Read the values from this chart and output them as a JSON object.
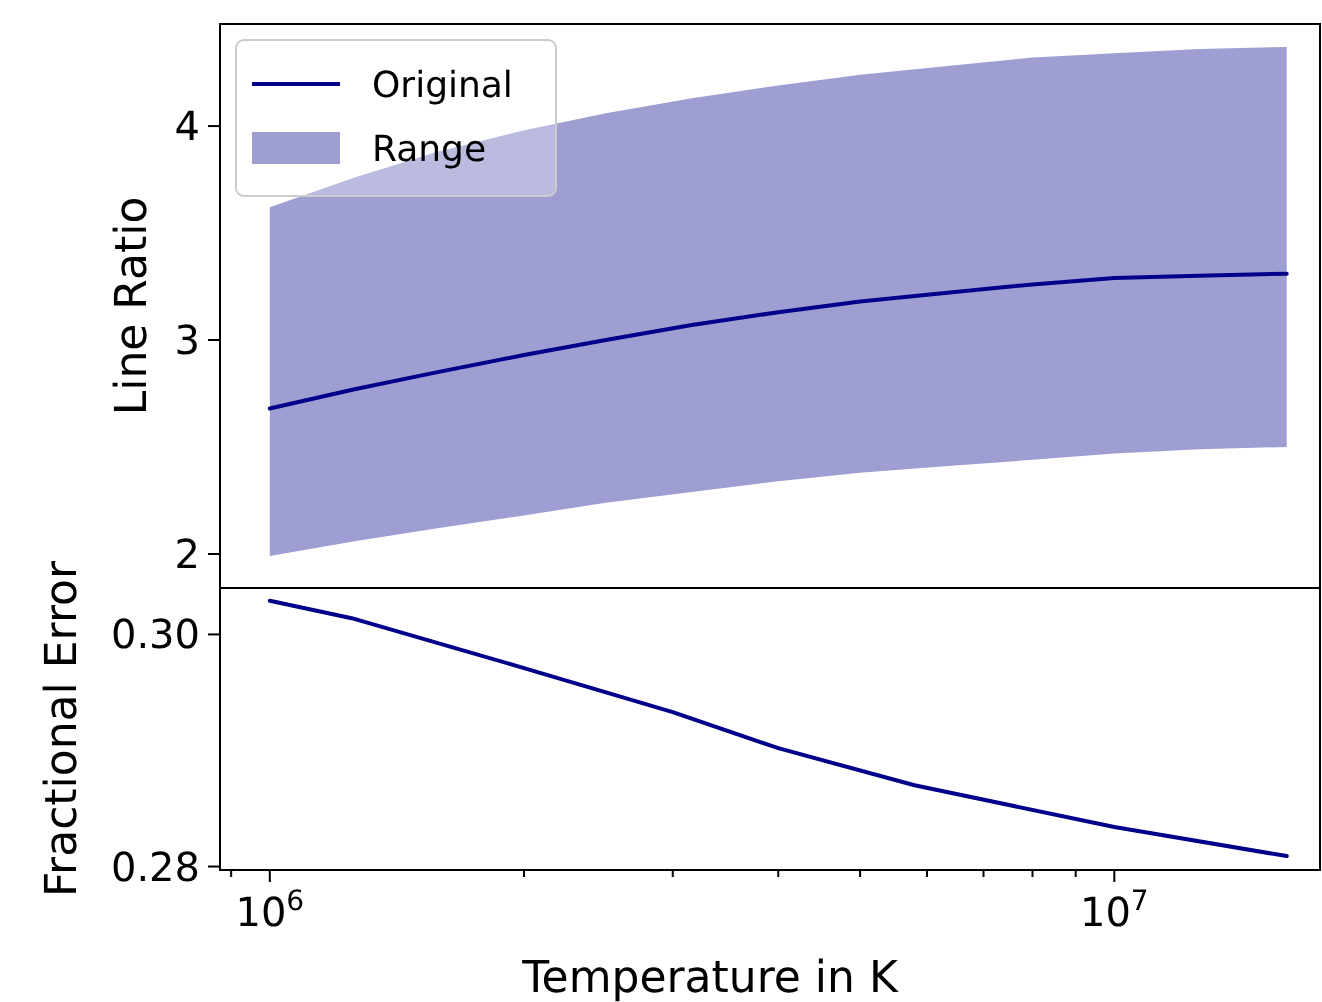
{
  "chart_data": [
    {
      "type": "line",
      "ylabel": "Line Ratio",
      "log": "x",
      "xlim": [
        873000,
        17520000
      ],
      "ylim": [
        1.841,
        4.477
      ],
      "yticks": [
        2,
        3,
        4
      ],
      "tick_labels": "y",
      "legend": "top left",
      "annotations": [
        "Range"
      ],
      "x": [
        1000000,
        1260000,
        1580000,
        2000000,
        2500000,
        3160000,
        4000000,
        5000000,
        6300000,
        8000000,
        10000000,
        12600000,
        16000000
      ],
      "series": [
        {
          "name": "Original",
          "color": "#00008b",
          "values": [
            2.68,
            2.77,
            2.85,
            2.93,
            3.0,
            3.07,
            3.13,
            3.18,
            3.22,
            3.26,
            3.29,
            3.3,
            3.31
          ],
          "lower": [
            1.99,
            2.06,
            2.12,
            2.18,
            2.24,
            2.29,
            2.34,
            2.38,
            2.41,
            2.44,
            2.47,
            2.49,
            2.5
          ],
          "upper": [
            3.62,
            3.76,
            3.88,
            3.98,
            4.06,
            4.13,
            4.19,
            4.24,
            4.28,
            4.32,
            4.34,
            4.36,
            4.37
          ]
        }
      ]
    },
    {
      "type": "line",
      "xlabel": "Temperature in K",
      "ylabel": "Fractional Error",
      "log": "x",
      "xlim": [
        873000,
        17520000
      ],
      "ylim": [
        0.2797,
        0.304
      ],
      "yticks": [
        {
          "value": 0.28,
          "label": "0.28"
        },
        {
          "value": 0.3,
          "label": "0.30"
        }
      ],
      "xticks": [
        {
          "value": 900000,
          "label": null
        },
        {
          "value": 1000000,
          "label": "10$^{6}$"
        },
        {
          "value": 2000000,
          "label": null
        },
        {
          "value": 3000000,
          "label": null
        },
        {
          "value": 4000000,
          "label": null
        },
        {
          "value": 5000000,
          "label": null
        },
        {
          "value": 6000000,
          "label": null
        },
        {
          "value": 7000000,
          "label": null
        },
        {
          "value": 8000000,
          "label": null
        },
        {
          "value": 9000000,
          "label": null
        },
        {
          "value": 10000000,
          "label": "10$^{7}$"
        }
      ],
      "x": [
        1000000,
        1250000,
        2000000,
        3000000,
        4000000,
        5800000,
        10000000,
        16000000
      ],
      "series": [
        {
          "color": "#00008b",
          "values": [
            0.3029,
            0.3014,
            0.2971,
            0.2933,
            0.2902,
            0.287,
            0.2834,
            0.2809
          ]
        }
      ]
    }
  ]
}
